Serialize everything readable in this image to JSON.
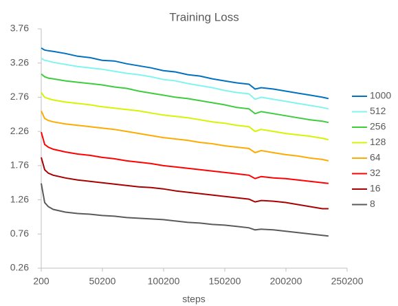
{
  "chart_data": {
    "type": "line",
    "title": "Training Loss",
    "x_label": "steps",
    "x": [
      200,
      3000,
      6000,
      10000,
      20000,
      30000,
      40000,
      50000,
      60000,
      70000,
      80000,
      90000,
      100000,
      110000,
      120000,
      130000,
      140000,
      150000,
      160000,
      170000,
      175000,
      180000,
      190000,
      200000,
      210000,
      220000,
      230000,
      235000
    ],
    "series": [
      {
        "name": "1000",
        "color": "#0070c0",
        "values": [
          3.48,
          3.45,
          3.44,
          3.43,
          3.4,
          3.36,
          3.34,
          3.3,
          3.29,
          3.25,
          3.22,
          3.19,
          3.15,
          3.13,
          3.09,
          3.07,
          3.03,
          3.0,
          2.97,
          2.95,
          2.88,
          2.9,
          2.88,
          2.85,
          2.82,
          2.79,
          2.76,
          2.74
        ]
      },
      {
        "name": "512",
        "color": "#80f4f0",
        "values": [
          3.33,
          3.3,
          3.29,
          3.27,
          3.24,
          3.21,
          3.19,
          3.17,
          3.14,
          3.11,
          3.09,
          3.06,
          3.02,
          3.0,
          2.96,
          2.93,
          2.9,
          2.86,
          2.83,
          2.81,
          2.73,
          2.76,
          2.73,
          2.7,
          2.67,
          2.64,
          2.61,
          2.59
        ]
      },
      {
        "name": "256",
        "color": "#3ccc3c",
        "values": [
          3.1,
          3.06,
          3.04,
          3.03,
          3.0,
          2.98,
          2.96,
          2.94,
          2.91,
          2.89,
          2.85,
          2.82,
          2.79,
          2.76,
          2.74,
          2.71,
          2.68,
          2.65,
          2.61,
          2.59,
          2.52,
          2.55,
          2.52,
          2.49,
          2.46,
          2.43,
          2.41,
          2.39
        ]
      },
      {
        "name": "128",
        "color": "#d4f400",
        "values": [
          2.83,
          2.76,
          2.74,
          2.72,
          2.69,
          2.67,
          2.65,
          2.62,
          2.6,
          2.58,
          2.56,
          2.53,
          2.5,
          2.48,
          2.46,
          2.43,
          2.4,
          2.38,
          2.35,
          2.33,
          2.26,
          2.29,
          2.26,
          2.23,
          2.21,
          2.19,
          2.16,
          2.14
        ]
      },
      {
        "name": "64",
        "color": "#ffaa00",
        "values": [
          2.56,
          2.45,
          2.42,
          2.4,
          2.37,
          2.35,
          2.33,
          2.31,
          2.29,
          2.26,
          2.23,
          2.2,
          2.17,
          2.15,
          2.13,
          2.1,
          2.08,
          2.05,
          2.03,
          2.01,
          1.95,
          1.98,
          1.95,
          1.92,
          1.9,
          1.87,
          1.85,
          1.83
        ]
      },
      {
        "name": "32",
        "color": "#ff0000",
        "values": [
          2.25,
          2.07,
          2.03,
          2.0,
          1.96,
          1.93,
          1.91,
          1.88,
          1.86,
          1.83,
          1.81,
          1.79,
          1.76,
          1.74,
          1.72,
          1.7,
          1.68,
          1.66,
          1.64,
          1.62,
          1.57,
          1.6,
          1.58,
          1.57,
          1.55,
          1.53,
          1.51,
          1.5
        ]
      },
      {
        "name": "16",
        "color": "#a80000",
        "values": [
          1.88,
          1.7,
          1.65,
          1.62,
          1.58,
          1.55,
          1.53,
          1.51,
          1.49,
          1.47,
          1.45,
          1.44,
          1.42,
          1.39,
          1.37,
          1.35,
          1.33,
          1.31,
          1.29,
          1.27,
          1.23,
          1.25,
          1.24,
          1.22,
          1.19,
          1.16,
          1.13,
          1.13
        ]
      },
      {
        "name": "8",
        "color": "#5a5a5a",
        "values": [
          1.5,
          1.22,
          1.16,
          1.12,
          1.08,
          1.06,
          1.05,
          1.03,
          1.02,
          1.0,
          0.99,
          0.98,
          0.97,
          0.95,
          0.93,
          0.92,
          0.9,
          0.89,
          0.87,
          0.85,
          0.82,
          0.83,
          0.82,
          0.8,
          0.78,
          0.76,
          0.74,
          0.73
        ]
      }
    ],
    "xlim": [
      200,
      250200
    ],
    "xticks": [
      200,
      50200,
      100200,
      150200,
      200200,
      250200
    ],
    "ylim": [
      0.26,
      3.76
    ],
    "yticks": [
      0.26,
      0.76,
      1.26,
      1.76,
      2.26,
      2.76,
      3.26,
      3.76
    ],
    "grid": false,
    "legend": "right"
  }
}
